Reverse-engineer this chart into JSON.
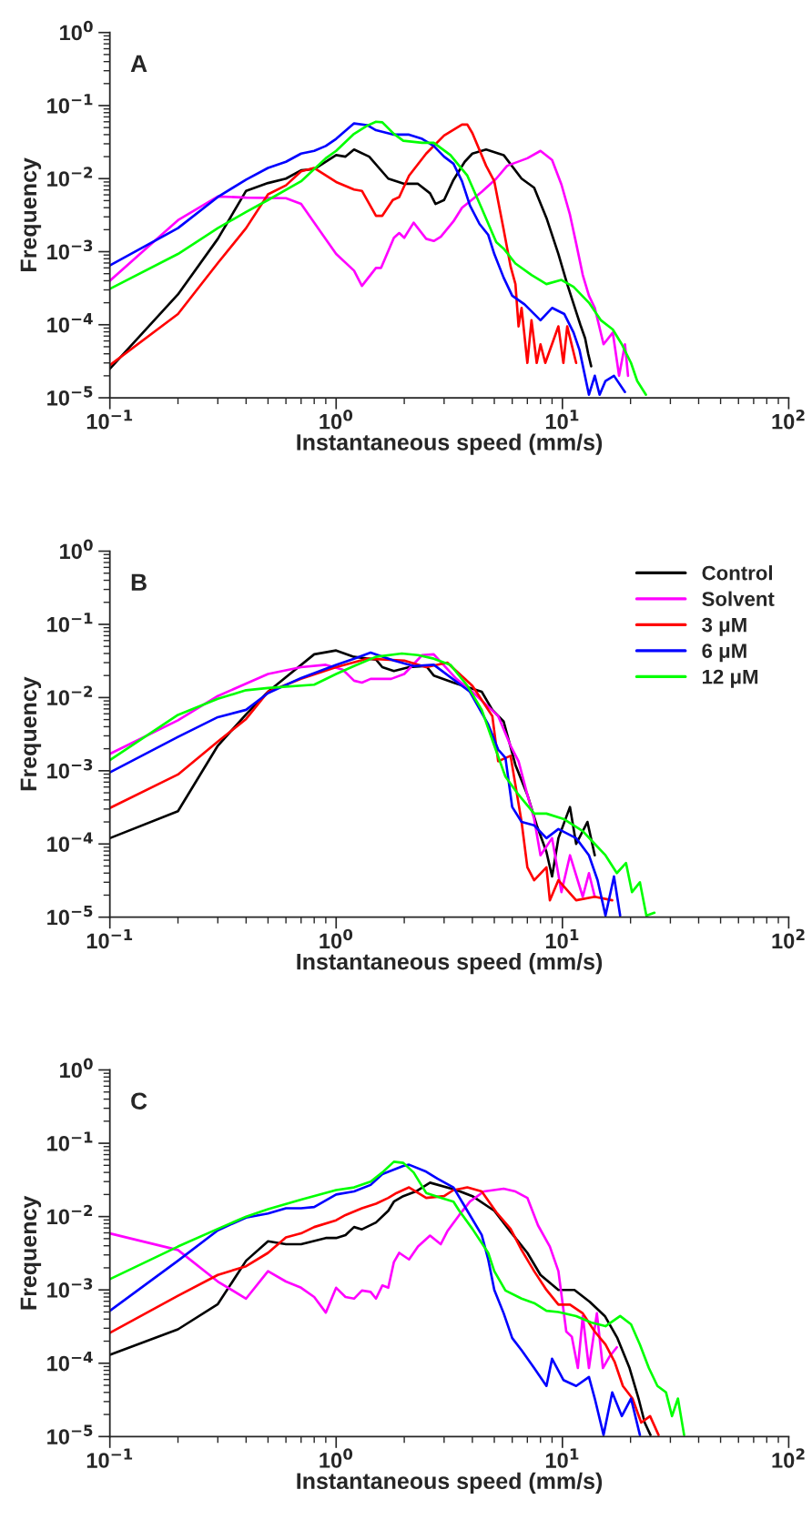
{
  "chart_data": [
    {
      "type": "line",
      "annotations": [
        "A"
      ],
      "xlabel": "Instantaneous speed (mm/s)",
      "ylabel": "Frequency",
      "log": "xy",
      "grid": false,
      "line_style": "solid",
      "marker": "none",
      "xlim": [
        0.1,
        100
      ],
      "ylim": [
        1e-05,
        1
      ],
      "xticks": [
        {
          "value": 0.1,
          "label": "10$^{−1}$"
        },
        {
          "value": 1,
          "label": "10$^{0}$"
        },
        {
          "value": 10,
          "label": "10$^{1}$"
        },
        {
          "value": 100,
          "label": "10$^{2}$"
        }
      ],
      "yticks": [
        {
          "value": 1e-05,
          "label": "10$^{−5}$"
        },
        {
          "value": 0.0001,
          "label": "10$^{−4}$"
        },
        {
          "value": 0.001,
          "label": "10$^{−3}$"
        },
        {
          "value": 0.01,
          "label": "10$^{−2}$"
        },
        {
          "value": 0.1,
          "label": "10$^{−1}$"
        },
        {
          "value": 1,
          "label": "10$^{0}$"
        }
      ],
      "series": [
        {
          "color": "#000000",
          "x": [
            0.1,
            0.2,
            0.3,
            0.4,
            0.5,
            0.6,
            0.7,
            0.8,
            1.0,
            1.1,
            1.2,
            1.4,
            1.7,
            2.0,
            2.3,
            2.6,
            2.75,
            3.0,
            3.3,
            3.7,
            4.0,
            4.6,
            5.5,
            6.6,
            7.5,
            8.5,
            9.6,
            10.5,
            11.5,
            12.0,
            12.6,
            13.0,
            13.4
          ],
          "values": [
            2.5e-05,
            0.00026,
            0.0015,
            0.0068,
            0.0087,
            0.01,
            0.013,
            0.0135,
            0.021,
            0.02,
            0.025,
            0.02,
            0.01,
            0.0085,
            0.0085,
            0.0063,
            0.0045,
            0.0051,
            0.0096,
            0.017,
            0.022,
            0.025,
            0.021,
            0.01,
            0.0075,
            0.0029,
            0.00093,
            0.00036,
            0.00015,
            0.0001,
            6.5e-05,
            4e-05,
            2.7e-05
          ]
        },
        {
          "color": "#ff00ff",
          "x": [
            0.1,
            0.2,
            0.3,
            0.4,
            0.6,
            0.7,
            1.0,
            1.2,
            1.3,
            1.5,
            1.58,
            1.8,
            1.9,
            2.0,
            2.2,
            2.5,
            2.7,
            2.9,
            3.3,
            3.6,
            4.4,
            5.1,
            5.7,
            7.0,
            8.0,
            9.0,
            9.9,
            10.8,
            11.5,
            12.3,
            13.1,
            13.9,
            15.2,
            16.7,
            17.8,
            18.9,
            19.5
          ],
          "values": [
            0.0004,
            0.0027,
            0.0057,
            0.0055,
            0.0054,
            0.0045,
            0.00093,
            0.00055,
            0.00034,
            0.0006,
            0.0006,
            0.00155,
            0.0018,
            0.00155,
            0.0025,
            0.0015,
            0.0014,
            0.0016,
            0.0026,
            0.004,
            0.0066,
            0.01,
            0.015,
            0.019,
            0.024,
            0.018,
            0.0083,
            0.0032,
            0.0013,
            0.00048,
            0.00025,
            0.00017,
            5.4e-05,
            7.8e-05,
            2e-05,
            5.4e-05,
            2e-05
          ]
        },
        {
          "color": "#ff0000",
          "x": [
            0.1,
            0.2,
            0.3,
            0.4,
            0.5,
            0.6,
            0.7,
            0.8,
            1.0,
            1.2,
            1.3,
            1.5,
            1.6,
            1.78,
            1.9,
            2.1,
            2.5,
            3.0,
            3.6,
            3.8,
            4.0,
            4.6,
            5.0,
            5.5,
            5.9,
            6.2,
            6.4,
            6.6,
            7.0,
            7.3,
            7.7,
            8.0,
            8.4,
            9.6,
            10.1,
            10.5,
            11.5
          ],
          "values": [
            2.8e-05,
            0.00014,
            0.0007,
            0.0021,
            0.0061,
            0.0081,
            0.0126,
            0.014,
            0.009,
            0.0071,
            0.0068,
            0.0031,
            0.0031,
            0.0051,
            0.0056,
            0.011,
            0.022,
            0.039,
            0.055,
            0.055,
            0.042,
            0.015,
            0.0092,
            0.002,
            0.00063,
            0.00036,
            9.5e-05,
            0.00017,
            3e-05,
            0.000115,
            3e-05,
            5.4e-05,
            3e-05,
            9.5e-05,
            3e-05,
            9.5e-05,
            3e-05
          ]
        },
        {
          "color": "#0000ff",
          "x": [
            0.1,
            0.2,
            0.3,
            0.4,
            0.5,
            0.6,
            0.7,
            0.8,
            0.9,
            1.0,
            1.2,
            1.37,
            1.5,
            1.8,
            2.1,
            2.4,
            2.7,
            3.0,
            3.3,
            3.6,
            3.9,
            4.3,
            4.7,
            5.0,
            5.5,
            6.0,
            6.8,
            8.0,
            9.0,
            10.2,
            11.2,
            11.9,
            13.1,
            13.9,
            14.6,
            15.5,
            16.9,
            18.9
          ],
          "values": [
            0.00065,
            0.0021,
            0.0056,
            0.0097,
            0.014,
            0.017,
            0.022,
            0.024,
            0.028,
            0.035,
            0.057,
            0.054,
            0.046,
            0.04,
            0.04,
            0.035,
            0.028,
            0.02,
            0.016,
            0.0092,
            0.0043,
            0.0024,
            0.0017,
            0.00093,
            0.00044,
            0.00025,
            0.00019,
            0.000115,
            0.00017,
            0.00014,
            7.8e-05,
            4.5e-05,
            1.1e-05,
            2e-05,
            1.1e-05,
            1.7e-05,
            2e-05,
            1.2e-05
          ]
        },
        {
          "color": "#00ff00",
          "x": [
            0.1,
            0.2,
            0.3,
            0.4,
            0.5,
            0.7,
            0.9,
            1.0,
            1.2,
            1.37,
            1.5,
            1.6,
            1.8,
            1.98,
            2.4,
            2.7,
            3.2,
            3.8,
            4.4,
            5.1,
            5.5,
            6.2,
            7.3,
            8.5,
            9.9,
            11.2,
            13.1,
            14.8,
            16.7,
            18.3,
            20.1,
            21.4,
            23.4
          ],
          "values": [
            0.00031,
            0.00093,
            0.0021,
            0.0035,
            0.0051,
            0.0092,
            0.019,
            0.024,
            0.041,
            0.053,
            0.06,
            0.059,
            0.041,
            0.033,
            0.031,
            0.031,
            0.021,
            0.011,
            0.0039,
            0.00135,
            0.0011,
            0.00069,
            0.00048,
            0.00036,
            0.00041,
            0.00033,
            0.0002,
            0.000115,
            8.6e-05,
            5.4e-05,
            3e-05,
            1.7e-05,
            1.1e-05
          ]
        }
      ]
    },
    {
      "type": "line",
      "annotations": [
        "B"
      ],
      "xlabel": "Instantaneous speed (mm/s)",
      "ylabel": "Frequency",
      "log": "xy",
      "grid": false,
      "line_style": "solid",
      "marker": "none",
      "legend": "top right",
      "xlim": [
        0.1,
        100
      ],
      "ylim": [
        1e-05,
        1
      ],
      "xticks": [
        {
          "value": 0.1,
          "label": "10$^{−1}$"
        },
        {
          "value": 1,
          "label": "10$^{0}$"
        },
        {
          "value": 10,
          "label": "10$^{1}$"
        },
        {
          "value": 100,
          "label": "10$^{2}$"
        }
      ],
      "yticks": [
        {
          "value": 1e-05,
          "label": "10$^{−5}$"
        },
        {
          "value": 0.0001,
          "label": "10$^{−4}$"
        },
        {
          "value": 0.001,
          "label": "10$^{−3}$"
        },
        {
          "value": 0.01,
          "label": "10$^{−2}$"
        },
        {
          "value": 0.1,
          "label": "10$^{−1}$"
        },
        {
          "value": 1,
          "label": "10$^{0}$"
        }
      ],
      "series": [
        {
          "name": "Control",
          "color": "#000000",
          "x": [
            0.1,
            0.2,
            0.3,
            0.4,
            0.5,
            0.6,
            0.8,
            1.0,
            1.2,
            1.5,
            1.6,
            1.8,
            2.1,
            2.5,
            2.7,
            3.3,
            4.4,
            4.9,
            5.5,
            6.2,
            7.0,
            7.7,
            8.5,
            9.0,
            9.6,
            10.8,
            11.5,
            12.9,
            13.9
          ],
          "values": [
            0.00012,
            0.00028,
            0.0022,
            0.0059,
            0.012,
            0.019,
            0.039,
            0.044,
            0.036,
            0.033,
            0.026,
            0.023,
            0.026,
            0.027,
            0.02,
            0.016,
            0.012,
            0.0068,
            0.0047,
            0.0012,
            0.00047,
            0.00018,
            7.8e-05,
            3.6e-05,
            0.00012,
            0.00032,
            0.0001,
            0.0002,
            7e-05
          ]
        },
        {
          "name": "Solvent",
          "color": "#ff00ff",
          "x": [
            0.1,
            0.2,
            0.3,
            0.5,
            0.7,
            0.9,
            1.07,
            1.2,
            1.3,
            1.42,
            1.75,
            2.0,
            2.4,
            2.7,
            3.4,
            4.0,
            5.2,
            5.9,
            6.4,
            7.0,
            7.5,
            8.0,
            9.0,
            9.9,
            10.8,
            12.3,
            13.1,
            13.9
          ],
          "values": [
            0.0017,
            0.0049,
            0.0105,
            0.021,
            0.026,
            0.028,
            0.024,
            0.017,
            0.016,
            0.018,
            0.018,
            0.021,
            0.038,
            0.039,
            0.018,
            0.012,
            0.0056,
            0.0022,
            0.00135,
            0.00047,
            0.00022,
            7e-05,
            0.00012,
            2.2e-05,
            7e-05,
            1.9e-05,
            4e-05,
            1.9e-05
          ]
        },
        {
          "name": "3 μM",
          "color": "#ff0000",
          "x": [
            0.1,
            0.2,
            0.3,
            0.4,
            0.5,
            0.7,
            1.0,
            1.37,
            2.0,
            2.5,
            3.1,
            4.0,
            4.9,
            5.2,
            5.9,
            6.6,
            7.0,
            7.5,
            8.5,
            8.8,
            9.6,
            11.5,
            13.9,
            16.6
          ],
          "values": [
            0.00031,
            0.00089,
            0.0025,
            0.0051,
            0.012,
            0.018,
            0.026,
            0.034,
            0.032,
            0.026,
            0.03,
            0.0145,
            0.0056,
            0.00135,
            0.0016,
            0.0002,
            4.8e-05,
            3.2e-05,
            4.8e-05,
            1.7e-05,
            3.2e-05,
            1.7e-05,
            1.9e-05,
            1.7e-05
          ]
        },
        {
          "name": "6 μM",
          "color": "#0000ff",
          "x": [
            0.1,
            0.2,
            0.3,
            0.4,
            0.5,
            0.7,
            1.0,
            1.2,
            1.42,
            1.8,
            2.2,
            2.7,
            3.9,
            4.7,
            5.2,
            5.6,
            6.0,
            6.6,
            7.5,
            8.5,
            9.6,
            11.5,
            13.1,
            14.3,
            15.5,
            16.9,
            18.0
          ],
          "values": [
            0.00095,
            0.0029,
            0.0054,
            0.0068,
            0.0115,
            0.0185,
            0.028,
            0.034,
            0.041,
            0.032,
            0.027,
            0.028,
            0.012,
            0.0043,
            0.00195,
            0.0015,
            0.00032,
            0.0002,
            0.00018,
            0.00012,
            0.00016,
            0.00012,
            7e-05,
            3.2e-05,
            1.05e-05,
            3.6e-05,
            1.05e-05
          ]
        },
        {
          "name": "12 μM",
          "color": "#00ff00",
          "x": [
            0.1,
            0.2,
            0.3,
            0.4,
            0.5,
            0.8,
            1.0,
            1.2,
            1.5,
            1.95,
            2.3,
            2.7,
            3.2,
            3.8,
            4.4,
            5.0,
            5.6,
            6.4,
            7.5,
            8.5,
            10.1,
            12.3,
            13.9,
            15.5,
            17.4,
            19.1,
            20.3,
            22.0,
            23.5,
            25.5
          ],
          "values": [
            0.0014,
            0.0058,
            0.0096,
            0.0126,
            0.0135,
            0.015,
            0.021,
            0.027,
            0.036,
            0.04,
            0.038,
            0.034,
            0.028,
            0.0145,
            0.0068,
            0.0022,
            0.00083,
            0.00047,
            0.00026,
            0.00026,
            0.00022,
            0.00015,
            0.0001,
            7e-05,
            4e-05,
            5.5e-05,
            2.2e-05,
            3e-05,
            1.05e-05,
            1.15e-05
          ]
        }
      ]
    },
    {
      "type": "line",
      "annotations": [
        "C"
      ],
      "xlabel": "Instantaneous speed (mm/s)",
      "ylabel": "Frequency",
      "log": "xy",
      "grid": false,
      "line_style": "solid",
      "marker": "none",
      "xlim": [
        0.1,
        100
      ],
      "ylim": [
        1e-05,
        1
      ],
      "xticks": [
        {
          "value": 0.1,
          "label": "10$^{−1}$"
        },
        {
          "value": 1,
          "label": "10$^{0}$"
        },
        {
          "value": 10,
          "label": "10$^{1}$"
        },
        {
          "value": 100,
          "label": "10$^{2}$"
        }
      ],
      "yticks": [
        {
          "value": 1e-05,
          "label": "10$^{−5}$"
        },
        {
          "value": 0.0001,
          "label": "10$^{−4}$"
        },
        {
          "value": 0.001,
          "label": "10$^{−3}$"
        },
        {
          "value": 0.01,
          "label": "10$^{−2}$"
        },
        {
          "value": 0.1,
          "label": "10$^{−1}$"
        },
        {
          "value": 1,
          "label": "10$^{0}$"
        }
      ],
      "series": [
        {
          "color": "#000000",
          "x": [
            0.1,
            0.2,
            0.3,
            0.4,
            0.5,
            0.6,
            0.7,
            0.9,
            1.0,
            1.1,
            1.2,
            1.3,
            1.5,
            1.7,
            1.8,
            1.98,
            2.25,
            2.6,
            3.4,
            4.0,
            5.0,
            5.9,
            7.0,
            8.0,
            9.6,
            11.3,
            13.2,
            15.4,
            17.5,
            19.8,
            21.7,
            23.1,
            24.5
          ],
          "values": [
            0.00013,
            0.00029,
            0.00064,
            0.0025,
            0.0046,
            0.0042,
            0.0042,
            0.0051,
            0.0051,
            0.0056,
            0.0072,
            0.0067,
            0.0083,
            0.012,
            0.016,
            0.019,
            0.022,
            0.029,
            0.023,
            0.019,
            0.012,
            0.0062,
            0.0032,
            0.0016,
            0.001,
            0.001,
            0.00069,
            0.00044,
            0.00022,
            8.6e-05,
            3.3e-05,
            1.55e-05,
            1.05e-05
          ]
        },
        {
          "color": "#ff00ff",
          "x": [
            0.1,
            0.2,
            0.3,
            0.4,
            0.5,
            0.6,
            0.7,
            0.8,
            0.9,
            1.0,
            1.1,
            1.2,
            1.3,
            1.42,
            1.5,
            1.6,
            1.7,
            1.8,
            1.9,
            2.1,
            2.3,
            2.6,
            2.9,
            3.1,
            3.5,
            3.9,
            4.5,
            5.5,
            6.2,
            7.0,
            7.8,
            8.8,
            9.6,
            10.4,
            11.0,
            11.7,
            12.3,
            13.1,
            14.2,
            15.1,
            16.2,
            17.4
          ],
          "values": [
            0.0059,
            0.0035,
            0.0013,
            0.00076,
            0.0018,
            0.0013,
            0.00107,
            0.0008,
            0.00049,
            0.00107,
            0.0008,
            0.00076,
            0.00098,
            0.00094,
            0.00076,
            0.00115,
            0.00107,
            0.0024,
            0.0032,
            0.0026,
            0.0039,
            0.0055,
            0.0042,
            0.0063,
            0.0105,
            0.016,
            0.022,
            0.024,
            0.022,
            0.018,
            0.0076,
            0.0039,
            0.0018,
            0.00027,
            0.00023,
            8.6e-05,
            0.00044,
            8.6e-05,
            0.00048,
            8.6e-05,
            0.000125,
            0.000165
          ]
        },
        {
          "color": "#ff0000",
          "x": [
            0.1,
            0.2,
            0.3,
            0.4,
            0.5,
            0.6,
            0.7,
            0.8,
            1.0,
            1.1,
            1.3,
            1.5,
            1.7,
            1.85,
            2.1,
            2.25,
            2.5,
            3.0,
            3.3,
            3.8,
            4.4,
            5.1,
            5.9,
            6.6,
            7.5,
            8.5,
            9.6,
            10.8,
            12.3,
            13.9,
            15.5,
            17.0,
            18.5,
            20.4,
            22.3,
            24.4,
            26.6
          ],
          "values": [
            0.00026,
            0.00083,
            0.0016,
            0.0021,
            0.0032,
            0.0052,
            0.0059,
            0.0072,
            0.0089,
            0.0105,
            0.013,
            0.015,
            0.018,
            0.021,
            0.025,
            0.022,
            0.018,
            0.019,
            0.023,
            0.025,
            0.022,
            0.0115,
            0.0068,
            0.0035,
            0.0018,
            0.001,
            0.00063,
            0.00063,
            0.00048,
            0.00027,
            0.00018,
            0.000105,
            4.9e-05,
            3.3e-05,
            1.55e-05,
            1.9e-05,
            1.05e-05
          ]
        },
        {
          "color": "#0000ff",
          "x": [
            0.1,
            0.2,
            0.3,
            0.4,
            0.5,
            0.6,
            0.7,
            0.8,
            1.0,
            1.2,
            1.42,
            1.6,
            1.98,
            2.1,
            2.5,
            2.8,
            3.3,
            3.8,
            4.4,
            4.7,
            5.0,
            5.5,
            6.0,
            6.6,
            7.5,
            8.5,
            9.0,
            10.1,
            11.5,
            13.1,
            13.9,
            15.2,
            16.6,
            18.3,
            20.1,
            22.0
          ],
          "values": [
            0.00052,
            0.0025,
            0.0065,
            0.0097,
            0.011,
            0.013,
            0.013,
            0.0135,
            0.02,
            0.022,
            0.027,
            0.038,
            0.049,
            0.051,
            0.041,
            0.033,
            0.025,
            0.012,
            0.0056,
            0.0026,
            0.001,
            0.00048,
            0.00022,
            0.00015,
            8.6e-05,
            4.9e-05,
            0.000115,
            5.9e-05,
            4.9e-05,
            6.5e-05,
            3.3e-05,
            1.05e-05,
            4e-05,
            1.9e-05,
            3.3e-05,
            1.05e-05
          ]
        },
        {
          "color": "#00ff00",
          "x": [
            0.1,
            0.2,
            0.3,
            0.4,
            0.5,
            0.7,
            1.0,
            1.2,
            1.42,
            1.6,
            1.8,
            1.98,
            2.2,
            2.5,
            2.9,
            3.3,
            3.5,
            4.0,
            4.7,
            5.0,
            5.6,
            6.6,
            7.5,
            8.5,
            9.6,
            11.5,
            13.4,
            15.5,
            18.0,
            20.1,
            22.0,
            24.1,
            26.3,
            28.7,
            30.5,
            32.4,
            34.5
          ],
          "values": [
            0.0014,
            0.0039,
            0.0068,
            0.01,
            0.0126,
            0.017,
            0.023,
            0.025,
            0.03,
            0.04,
            0.056,
            0.054,
            0.04,
            0.021,
            0.018,
            0.016,
            0.012,
            0.0068,
            0.0032,
            0.0018,
            0.00098,
            0.00076,
            0.00066,
            0.00052,
            0.0005,
            0.00044,
            0.00036,
            0.00032,
            0.00044,
            0.00034,
            0.00018,
            8.6e-05,
            4.9e-05,
            4e-05,
            1.9e-05,
            3.3e-05,
            1.05e-05
          ]
        }
      ]
    }
  ]
}
